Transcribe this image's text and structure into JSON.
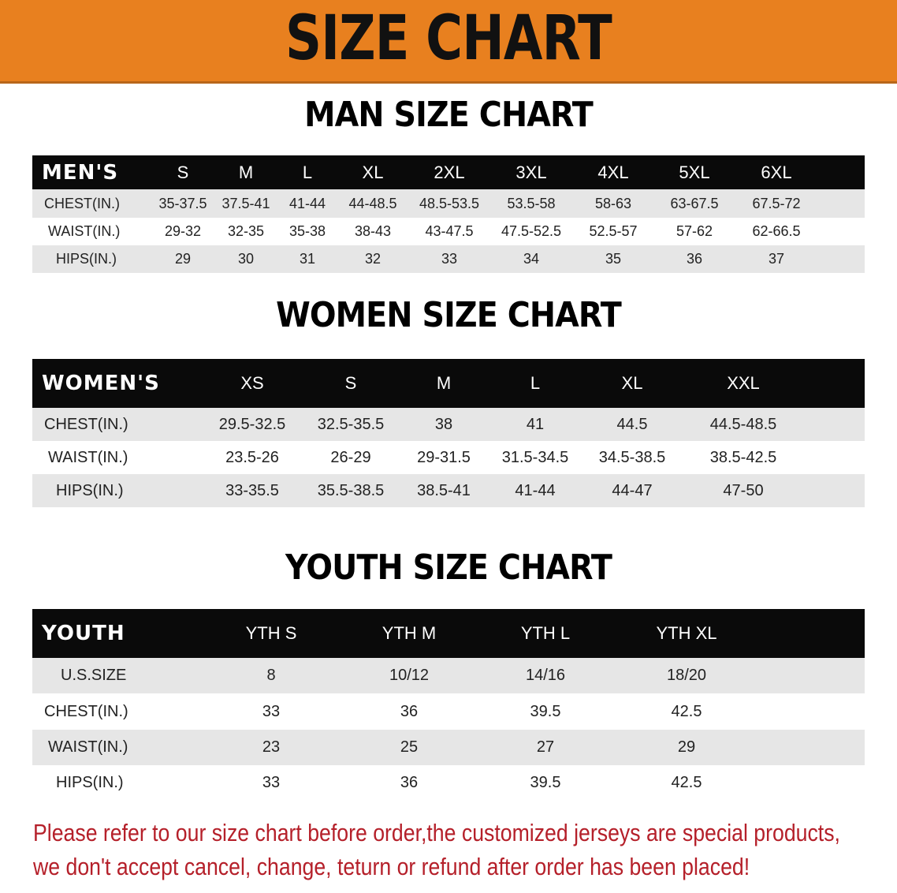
{
  "banner_title": "SIZE CHART",
  "men": {
    "title": "MAN SIZE CHART",
    "header": [
      "MEN'S",
      "S",
      "M",
      "L",
      "XL",
      "2XL",
      "3XL",
      "4XL",
      "5XL",
      "6XL"
    ],
    "rows": [
      [
        "CHEST(IN.)",
        "35-37.5",
        "37.5-41",
        "41-44",
        "44-48.5",
        "48.5-53.5",
        "53.5-58",
        "58-63",
        "63-67.5",
        "67.5-72"
      ],
      [
        "WAIST(IN.)",
        "29-32",
        "32-35",
        "35-38",
        "38-43",
        "43-47.5",
        "47.5-52.5",
        "52.5-57",
        "57-62",
        "62-66.5"
      ],
      [
        "HIPS(IN.)",
        "29",
        "30",
        "31",
        "32",
        "33",
        "34",
        "35",
        "36",
        "37"
      ]
    ]
  },
  "women": {
    "title": "WOMEN SIZE CHART",
    "header": [
      "WOMEN'S",
      "XS",
      "S",
      "M",
      "L",
      "XL",
      "XXL"
    ],
    "rows": [
      [
        "CHEST(IN.)",
        "29.5-32.5",
        "32.5-35.5",
        "38",
        "41",
        "44.5",
        "44.5-48.5"
      ],
      [
        "WAIST(IN.)",
        "23.5-26",
        "26-29",
        "29-31.5",
        "31.5-34.5",
        "34.5-38.5",
        "38.5-42.5"
      ],
      [
        "HIPS(IN.)",
        "33-35.5",
        "35.5-38.5",
        "38.5-41",
        "41-44",
        "44-47",
        "47-50"
      ]
    ]
  },
  "youth": {
    "title": "YOUTH SIZE CHART",
    "header": [
      "YOUTH",
      "YTH S",
      "YTH M",
      "YTH L",
      "YTH XL"
    ],
    "rows": [
      [
        "U.S.SIZE",
        "8",
        "10/12",
        "14/16",
        "18/20"
      ],
      [
        "CHEST(IN.)",
        "33",
        "36",
        "39.5",
        "42.5"
      ],
      [
        "WAIST(IN.)",
        "23",
        "25",
        "27",
        "29"
      ],
      [
        "HIPS(IN.)",
        "33",
        "36",
        "39.5",
        "42.5"
      ]
    ]
  },
  "notice": [
    "Please refer to our size chart before order,the customized jerseys are special products,",
    "we don't accept cancel, change, teturn or refund after order has been placed!"
  ],
  "colors": {
    "banner": "#e8801f",
    "header_row": "#0a0a0a",
    "alt_row": "#e6e6e6",
    "notice": "#b5202a"
  }
}
